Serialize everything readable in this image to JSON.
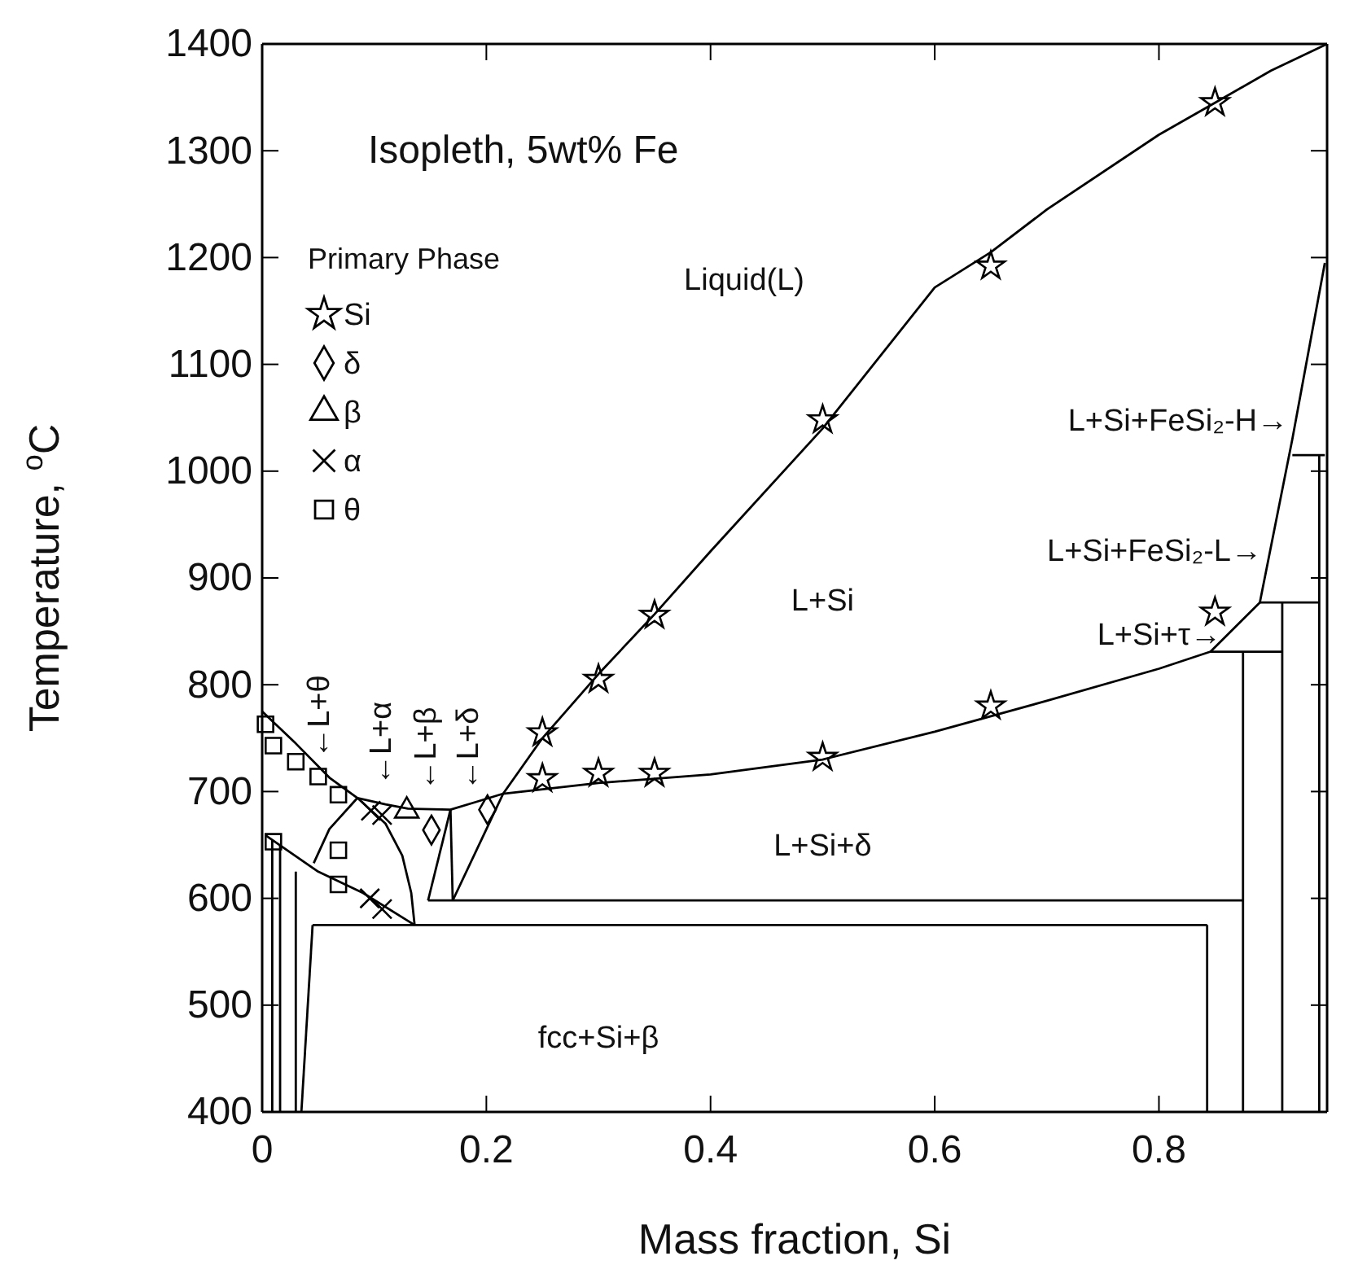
{
  "chart_data": {
    "type": "line",
    "title": "Isopleth, 5wt% Fe",
    "xlabel": "Mass fraction, Si",
    "ylabel": "Temperature, $^{o}$C",
    "xlim": [
      0,
      0.95
    ],
    "xticks": [
      0,
      0.2,
      0.4,
      0.6,
      0.8
    ],
    "ylim": [
      400,
      1400
    ],
    "yticks": [
      400,
      500,
      600,
      700,
      800,
      900,
      1000,
      1100,
      1200,
      1300,
      1400
    ],
    "legend": "top left",
    "legend_title": "Primary Phase",
    "grid": false,
    "line_style": "solid",
    "series": [
      {
        "color": "#000000",
        "marker": "none",
        "x": [
          0.17,
          0.215,
          0.25,
          0.3,
          0.35,
          0.4,
          0.5,
          0.6,
          0.65,
          0.7,
          0.8,
          0.85,
          0.9,
          0.95
        ],
        "values": [
          598,
          698,
          750,
          810,
          866,
          925,
          1040,
          1172,
          1205,
          1245,
          1315,
          1345,
          1375,
          1400
        ]
      },
      {
        "color": "#000000",
        "marker": "none",
        "x": [
          0,
          0.03,
          0.06,
          0.085,
          0.11,
          0.13,
          0.168,
          0.19,
          0.215,
          0.3,
          0.4,
          0.5,
          0.6,
          0.7,
          0.8,
          0.846,
          0.91
        ],
        "values": [
          775,
          745,
          713,
          694,
          688,
          684,
          683,
          690,
          698,
          708,
          716,
          730,
          756,
          785,
          815,
          831,
          831
        ]
      },
      {
        "color": "#000000",
        "marker": "none",
        "x": [
          0.846,
          0.89,
          0.919,
          0.948
        ],
        "values": [
          831,
          877,
          1030,
          1195
        ]
      },
      {
        "color": "#000000",
        "marker": "none",
        "x": [
          0.89,
          0.943
        ],
        "values": [
          877,
          877
        ]
      },
      {
        "color": "#000000",
        "marker": "none",
        "x": [
          0.919,
          0.948
        ],
        "values": [
          1015,
          1015
        ]
      },
      {
        "color": "#000000",
        "marker": "none",
        "x": [
          0.875,
          0.875
        ],
        "values": [
          831,
          400
        ]
      },
      {
        "color": "#000000",
        "marker": "none",
        "x": [
          0.91,
          0.91
        ],
        "values": [
          877,
          400
        ]
      },
      {
        "color": "#000000",
        "marker": "none",
        "x": [
          0.943,
          0.943
        ],
        "values": [
          1015,
          400
        ]
      },
      {
        "color": "#000000",
        "marker": "none",
        "x": [
          0.843,
          0.843
        ],
        "values": [
          575,
          400
        ]
      },
      {
        "color": "#000000",
        "marker": "none",
        "x": [
          0.148,
          0.875
        ],
        "values": [
          598,
          598
        ]
      },
      {
        "color": "#000000",
        "marker": "none",
        "x": [
          0.045,
          0.843
        ],
        "values": [
          575,
          575
        ]
      },
      {
        "color": "#000000",
        "marker": "none",
        "x": [
          0.168,
          0.148
        ],
        "values": [
          683,
          598
        ]
      },
      {
        "color": "#000000",
        "marker": "none",
        "x": [
          0.168,
          0.17
        ],
        "values": [
          683,
          598
        ]
      },
      {
        "color": "#000000",
        "marker": "none",
        "x": [
          0.085,
          0.11,
          0.125,
          0.133,
          0.136
        ],
        "values": [
          694,
          670,
          640,
          605,
          575
        ]
      },
      {
        "color": "#000000",
        "marker": "none",
        "x": [
          0.046,
          0.06,
          0.085
        ],
        "values": [
          633,
          665,
          694
        ]
      },
      {
        "color": "#000000",
        "marker": "none",
        "x": [
          0.003,
          0.05,
          0.09,
          0.136
        ],
        "values": [
          659,
          625,
          605,
          575
        ]
      },
      {
        "color": "#000000",
        "marker": "none",
        "x": [
          0.009,
          0.009
        ],
        "values": [
          655,
          400
        ]
      },
      {
        "color": "#000000",
        "marker": "none",
        "x": [
          0.016,
          0.016
        ],
        "values": [
          650,
          400
        ]
      },
      {
        "color": "#000000",
        "marker": "none",
        "x": [
          0.03,
          0.03
        ],
        "values": [
          625,
          400
        ]
      },
      {
        "color": "#000000",
        "marker": "none",
        "x": [
          0.035,
          0.045
        ],
        "values": [
          400,
          575
        ]
      },
      {
        "type": "scatter",
        "name": "Si",
        "color": "#000000",
        "marker": "star",
        "x": [
          0.25,
          0.3,
          0.35,
          0.5,
          0.65,
          0.85,
          0.25,
          0.3,
          0.35,
          0.5,
          0.65,
          0.85
        ],
        "values": [
          755,
          805,
          865,
          1048,
          1192,
          1345,
          712,
          717,
          717,
          732,
          780,
          868
        ]
      },
      {
        "type": "scatter",
        "name": "δ",
        "color": "#000000",
        "marker": "diamond",
        "x": [
          0.151,
          0.201
        ],
        "values": [
          664,
          683
        ]
      },
      {
        "type": "scatter",
        "name": "β",
        "color": "#000000",
        "marker": "triangle",
        "x": [
          0.129
        ],
        "values": [
          682
        ]
      },
      {
        "type": "scatter",
        "name": "α",
        "color": "#000000",
        "marker": "cross",
        "x": [
          0.097,
          0.107,
          0.096,
          0.107
        ],
        "values": [
          682,
          678,
          600,
          590
        ]
      },
      {
        "type": "scatter",
        "name": "θ",
        "color": "#000000",
        "marker": "square",
        "x": [
          0.003,
          0.01,
          0.03,
          0.05,
          0.068,
          0.068,
          0.068,
          0.01
        ],
        "values": [
          763,
          743,
          728,
          714,
          697,
          645,
          613,
          653
        ]
      }
    ],
    "annotations": [
      "Liquid(L)",
      "L+Si",
      "L+Si+δ",
      "fcc+Si+β",
      "←L+θ",
      "←L+α",
      "←L+β",
      "←L+δ",
      "L+Si+FeSi₂-H→",
      "L+Si+FeSi₂-L→",
      "L+Si+τ→"
    ]
  }
}
